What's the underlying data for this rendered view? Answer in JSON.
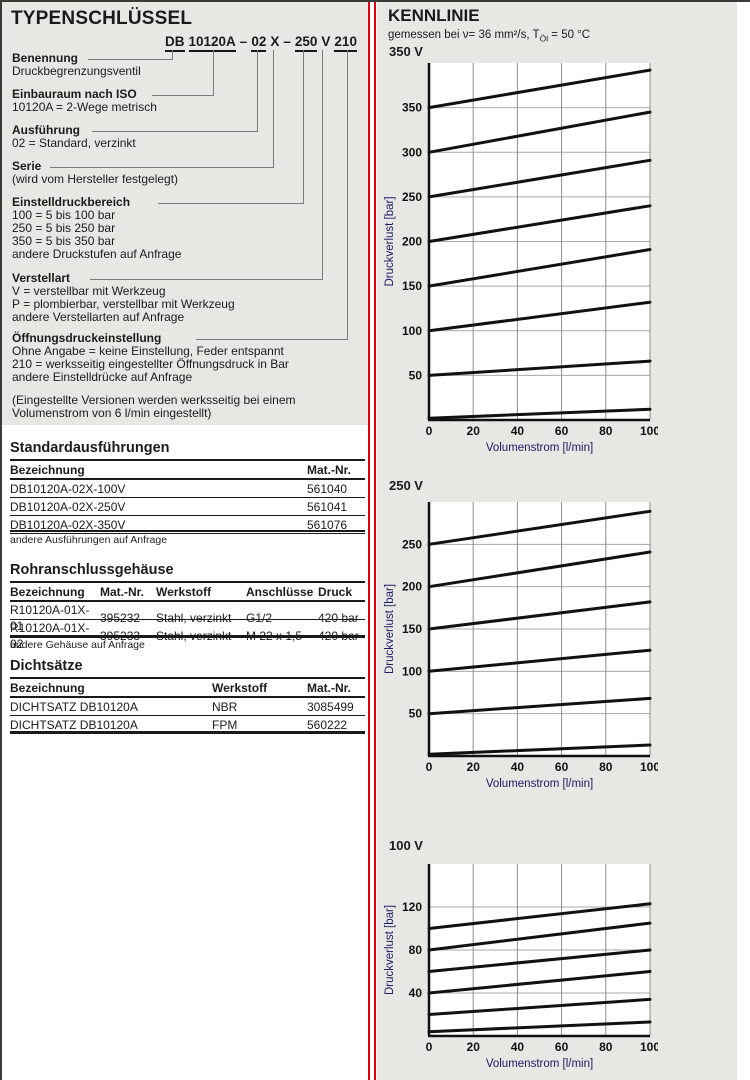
{
  "left": {
    "title": "TYPENSCHLÜSSEL",
    "code_parts": [
      "DB",
      "10120A",
      "–",
      "02",
      "X",
      "–",
      "250",
      "V",
      "210"
    ],
    "sections": [
      {
        "title": "Benennung",
        "lines": [
          "Druckbegrenzungsventil"
        ]
      },
      {
        "title": "Einbauraum nach ISO",
        "lines": [
          "10120A = 2-Wege metrisch"
        ]
      },
      {
        "title": "Ausführung",
        "lines": [
          "02    = Standard, verzinkt"
        ]
      },
      {
        "title": "Serie",
        "lines": [
          "(wird vom Hersteller festgelegt)"
        ]
      },
      {
        "title": "Einstelldruckbereich",
        "lines": [
          "100   = 5 bis 100 bar",
          "250   = 5 bis 250 bar",
          "350   = 5 bis 350 bar",
          "andere Druckstufen auf Anfrage"
        ]
      },
      {
        "title": "Verstellart",
        "lines": [
          "V      = verstellbar mit Werkzeug",
          "P      = plombierbar, verstellbar mit Werkzeug",
          "andere Verstellarten auf Anfrage"
        ]
      },
      {
        "title": "Öffnungsdruckeinstellung",
        "lines": [
          "Ohne Angabe = keine Einstellung, Feder entspannt",
          "210   = werksseitig eingestellter Öffnungsdruck in Bar",
          "andere Einstelldrücke auf Anfrage"
        ]
      }
    ],
    "footnote_lines": [
      "(Eingestellte Versionen werden werksseitig bei einem",
      "Volumenstrom von 6 l/min eingestellt)"
    ]
  },
  "tables": {
    "standard": {
      "title": "Standardausführungen",
      "headers": [
        "Bezeichnung",
        "Mat.-Nr."
      ],
      "rows": [
        [
          "DB10120A-02X-100V",
          "561040"
        ],
        [
          "DB10120A-02X-250V",
          "561041"
        ],
        [
          "DB10120A-02X-350V",
          "561076"
        ]
      ],
      "note": "andere Ausführungen auf Anfrage"
    },
    "rohr": {
      "title": "Rohranschlussgehäuse",
      "headers": [
        "Bezeichnung",
        "Mat.-Nr.",
        "Werkstoff",
        "Anschlüsse",
        "Druck"
      ],
      "rows": [
        [
          "R10120A-01X-01",
          "395232",
          "Stahl, verzinkt",
          "G1/2",
          "420 bar"
        ],
        [
          "R10120A-01X-02",
          "395233",
          "Stahl, verzinkt",
          "M 22 x 1,5",
          "420 bar"
        ]
      ],
      "note": "andere Gehäuse auf Anfrage"
    },
    "dicht": {
      "title": "Dichtsätze",
      "headers": [
        "Bezeichnung",
        "Werkstoff",
        "Mat.-Nr."
      ],
      "rows": [
        [
          "DICHTSATZ DB10120A",
          "NBR",
          "3085499"
        ],
        [
          "DICHTSATZ DB10120A",
          "FPM",
          "560222"
        ]
      ]
    }
  },
  "kennlinie": {
    "title": "KENNLINIE",
    "subtitle_prefix": "gemessen bei ν= 36 mm²/s, T",
    "subtitle_sub": "Öl",
    "subtitle_suffix": " = 50 °C"
  },
  "colors": {
    "panel_gray": "#e8e7e4",
    "divider_red": "#e30014",
    "curve_black": "#111111"
  },
  "chart_data": [
    {
      "type": "line",
      "title": "350 V",
      "xlabel": "Volumenstrom [l/min]",
      "ylabel": "Druckverlust [bar]",
      "xlim": [
        0,
        100
      ],
      "ylim": [
        0,
        400
      ],
      "xticks": [
        0,
        20,
        40,
        60,
        80,
        100
      ],
      "yticks": [
        50,
        100,
        150,
        200,
        250,
        300,
        350
      ],
      "grid": true,
      "legend": "none",
      "series": [
        {
          "name": "350 bar",
          "x": [
            0,
            100
          ],
          "y": [
            350,
            392
          ]
        },
        {
          "name": "300 bar",
          "x": [
            0,
            100
          ],
          "y": [
            300,
            345
          ]
        },
        {
          "name": "250 bar",
          "x": [
            0,
            100
          ],
          "y": [
            250,
            291
          ]
        },
        {
          "name": "200 bar",
          "x": [
            0,
            100
          ],
          "y": [
            200,
            240
          ]
        },
        {
          "name": "150 bar",
          "x": [
            0,
            100
          ],
          "y": [
            150,
            191
          ]
        },
        {
          "name": "100 bar",
          "x": [
            0,
            100
          ],
          "y": [
            100,
            132
          ]
        },
        {
          "name": "50 bar",
          "x": [
            0,
            100
          ],
          "y": [
            50,
            66
          ]
        },
        {
          "name": "0 bar",
          "x": [
            0,
            100
          ],
          "y": [
            2,
            12
          ]
        }
      ]
    },
    {
      "type": "line",
      "title": "250 V",
      "xlabel": "Volumenstrom [l/min]",
      "ylabel": "Druckverlust [bar]",
      "xlim": [
        0,
        100
      ],
      "ylim": [
        0,
        300
      ],
      "xticks": [
        0,
        20,
        40,
        60,
        80,
        100
      ],
      "yticks": [
        50,
        100,
        150,
        200,
        250
      ],
      "grid": true,
      "legend": "none",
      "series": [
        {
          "name": "250 bar",
          "x": [
            0,
            100
          ],
          "y": [
            250,
            289
          ]
        },
        {
          "name": "200 bar",
          "x": [
            0,
            100
          ],
          "y": [
            200,
            241
          ]
        },
        {
          "name": "150 bar",
          "x": [
            0,
            100
          ],
          "y": [
            150,
            182
          ]
        },
        {
          "name": "100 bar",
          "x": [
            0,
            100
          ],
          "y": [
            100,
            125
          ]
        },
        {
          "name": "50 bar",
          "x": [
            0,
            100
          ],
          "y": [
            50,
            68
          ]
        },
        {
          "name": "0 bar",
          "x": [
            0,
            100
          ],
          "y": [
            2,
            13
          ]
        }
      ]
    },
    {
      "type": "line",
      "title": "100 V",
      "xlabel": "Volumenstrom [l/min]",
      "ylabel": "Druckverlust [bar]",
      "xlim": [
        0,
        100
      ],
      "ylim": [
        0,
        160
      ],
      "xticks": [
        0,
        20,
        40,
        60,
        80,
        100
      ],
      "yticks": [
        40,
        80,
        120
      ],
      "grid": true,
      "legend": "none",
      "series": [
        {
          "name": "100 bar",
          "x": [
            0,
            100
          ],
          "y": [
            100,
            123
          ]
        },
        {
          "name": "80 bar",
          "x": [
            0,
            100
          ],
          "y": [
            80,
            105
          ]
        },
        {
          "name": "60 bar",
          "x": [
            0,
            100
          ],
          "y": [
            60,
            80
          ]
        },
        {
          "name": "40 bar",
          "x": [
            0,
            100
          ],
          "y": [
            40,
            60
          ]
        },
        {
          "name": "20 bar",
          "x": [
            0,
            100
          ],
          "y": [
            20,
            34
          ]
        },
        {
          "name": "5 bar",
          "x": [
            0,
            100
          ],
          "y": [
            4,
            13
          ]
        }
      ]
    }
  ]
}
